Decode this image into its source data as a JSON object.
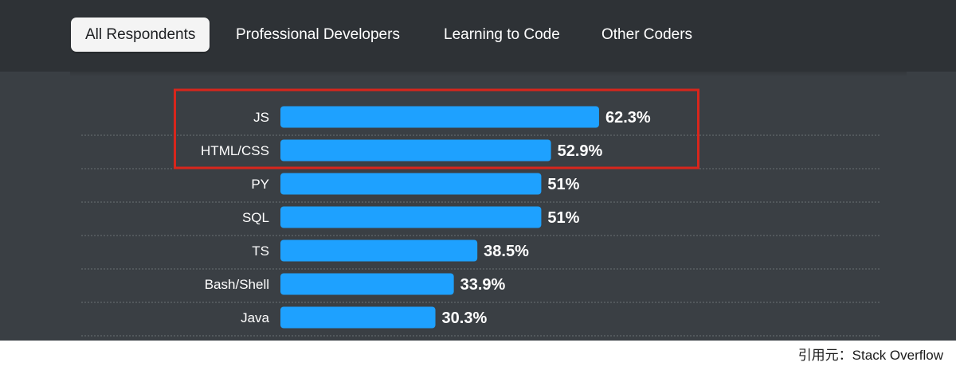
{
  "tabs": [
    {
      "label": "All Respondents",
      "active": true
    },
    {
      "label": "Professional Developers",
      "active": false
    },
    {
      "label": "Learning to Code",
      "active": false
    },
    {
      "label": "Other Coders",
      "active": false
    }
  ],
  "colors": {
    "bar": "#1ea1ff",
    "highlight_box": "#d8261c",
    "background": "#3a3f44"
  },
  "chart_data": {
    "type": "bar",
    "orientation": "horizontal",
    "categories": [
      "JS",
      "HTML/CSS",
      "PY",
      "SQL",
      "TS",
      "Bash/Shell",
      "Java"
    ],
    "values": [
      62.3,
      52.9,
      51,
      51,
      38.5,
      33.9,
      30.3
    ],
    "value_labels": [
      "62.3%",
      "52.9%",
      "51%",
      "51%",
      "38.5%",
      "33.9%",
      "30.3%"
    ],
    "highlighted_categories": [
      "JS",
      "HTML/CSS"
    ],
    "xlim": [
      0,
      100
    ]
  },
  "footer": {
    "credit": "引用元：Stack Overflow"
  }
}
